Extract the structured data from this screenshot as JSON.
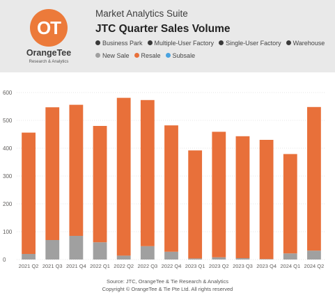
{
  "header": {
    "logo_mark": "OT",
    "brand": "OrangeTee",
    "brand_sub": "Research & Analytics",
    "suite": "Market Analytics Suite",
    "title": "JTC Quarter Sales Volume"
  },
  "legend_row1": [
    {
      "label": "Business Park",
      "color": "#3a3a3a"
    },
    {
      "label": "Multiple-User Factory",
      "color": "#3a3a3a"
    },
    {
      "label": "Single-User Factory",
      "color": "#3a3a3a"
    },
    {
      "label": "Warehouse",
      "color": "#3a3a3a"
    }
  ],
  "legend_row2": [
    {
      "label": "New Sale",
      "color": "#a0a0a0"
    },
    {
      "label": "Resale",
      "color": "#e8703a"
    },
    {
      "label": "Subsale",
      "color": "#4aa3e0"
    }
  ],
  "chart_data": {
    "type": "bar",
    "stacked": true,
    "categories": [
      "2021 Q2",
      "2021 Q3",
      "2021 Q4",
      "2022 Q1",
      "2022 Q2",
      "2022 Q3",
      "2022 Q4",
      "2023 Q1",
      "2023 Q2",
      "2023 Q3",
      "2023 Q4",
      "2024 Q1",
      "2024 Q2"
    ],
    "series": [
      {
        "name": "New Sale",
        "color": "#a0a0a0",
        "values": [
          20,
          70,
          85,
          62,
          14,
          48,
          28,
          4,
          8,
          5,
          2,
          22,
          32
        ]
      },
      {
        "name": "Resale",
        "color": "#e8703a",
        "values": [
          436,
          477,
          471,
          418,
          567,
          525,
          454,
          388,
          451,
          438,
          428,
          357,
          516
        ]
      },
      {
        "name": "Subsale",
        "color": "#4aa3e0",
        "values": [
          0,
          0,
          0,
          0,
          0,
          0,
          0,
          0,
          0,
          0,
          0,
          0,
          0
        ]
      }
    ],
    "ylim": [
      0,
      600
    ],
    "yticks": [
      0,
      100,
      200,
      300,
      400,
      500,
      600
    ],
    "grid": true,
    "legend_placement": "top"
  },
  "footer": {
    "source": "Source: JTC, OrangeTee & Tie Research & Analytics",
    "copyright": "Copyright © OrangeTee & Tie Pte Ltd. All rights reserved"
  }
}
